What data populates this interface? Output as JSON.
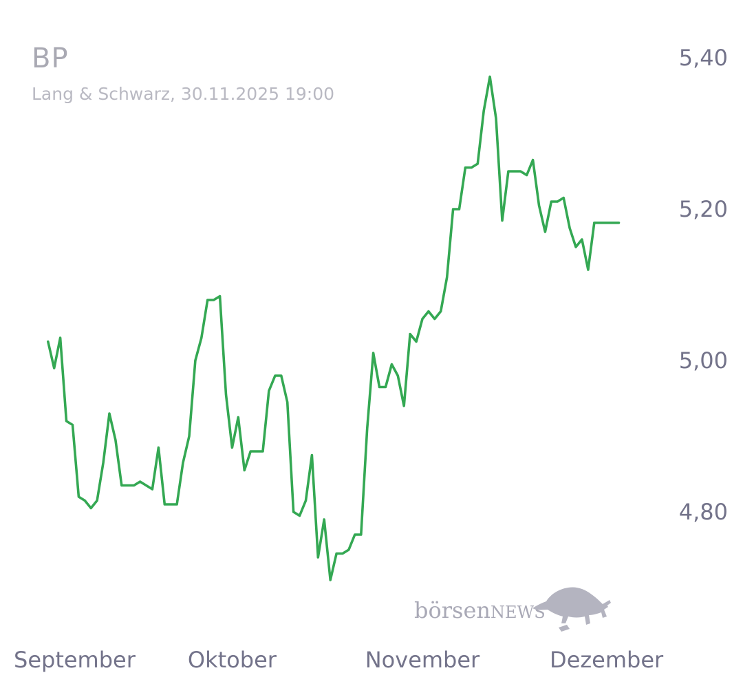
{
  "header": {
    "title": "BP",
    "subtitle": "Lang & Schwarz, 30.11.2025 19:00"
  },
  "watermark": {
    "text_lower": "börsen",
    "text_upper": "NEWS",
    "icon": "bull-icon"
  },
  "colors": {
    "line": "#34a853",
    "title": "#a9a9b3",
    "axis_text": "#73738a",
    "watermark": "#b4b4c0"
  },
  "chart_data": {
    "type": "line",
    "title": "BP",
    "subtitle": "Lang & Schwarz, 30.11.2025 19:00",
    "y_axis_position": "right",
    "ylim": [
      4.66,
      5.43
    ],
    "yticks": [
      4.8,
      5.0,
      5.2,
      5.4
    ],
    "ytick_labels": [
      "4,80",
      "5,00",
      "5,20",
      "5,40"
    ],
    "xlim": [
      "2025-08-29",
      "2025-12-09"
    ],
    "xticks": [
      "2025-09-01",
      "2025-10-01",
      "2025-11-01",
      "2025-12-01"
    ],
    "xtick_labels": [
      "September",
      "Oktober",
      "November",
      "Dezember"
    ],
    "grid": false,
    "legend": "none",
    "series": [
      {
        "x": [
          "2025-09-01",
          "2025-09-02",
          "2025-09-03",
          "2025-09-04",
          "2025-09-05",
          "2025-09-06",
          "2025-09-07",
          "2025-09-08",
          "2025-09-09",
          "2025-09-10",
          "2025-09-11",
          "2025-09-12",
          "2025-09-13",
          "2025-09-14",
          "2025-09-15",
          "2025-09-16",
          "2025-09-17",
          "2025-09-18",
          "2025-09-19",
          "2025-09-20",
          "2025-09-21",
          "2025-09-22",
          "2025-09-23",
          "2025-09-24",
          "2025-09-25",
          "2025-09-26",
          "2025-09-27",
          "2025-09-28",
          "2025-09-29",
          "2025-09-30",
          "2025-10-01",
          "2025-10-02",
          "2025-10-03",
          "2025-10-04",
          "2025-10-05",
          "2025-10-06",
          "2025-10-07",
          "2025-10-08",
          "2025-10-09",
          "2025-10-10",
          "2025-10-11",
          "2025-10-12",
          "2025-10-13",
          "2025-10-14",
          "2025-10-15",
          "2025-10-16",
          "2025-10-17",
          "2025-10-18",
          "2025-10-19",
          "2025-10-20",
          "2025-10-21",
          "2025-10-22",
          "2025-10-23",
          "2025-10-24",
          "2025-10-25",
          "2025-10-26",
          "2025-10-27",
          "2025-10-28",
          "2025-10-29",
          "2025-10-30",
          "2025-10-31",
          "2025-11-01",
          "2025-11-02",
          "2025-11-03",
          "2025-11-04",
          "2025-11-05",
          "2025-11-06",
          "2025-11-07",
          "2025-11-08",
          "2025-11-09",
          "2025-11-10",
          "2025-11-11",
          "2025-11-12",
          "2025-11-13",
          "2025-11-14",
          "2025-11-15",
          "2025-11-16",
          "2025-11-17",
          "2025-11-18",
          "2025-11-19",
          "2025-11-20",
          "2025-11-21",
          "2025-11-22",
          "2025-11-23",
          "2025-11-24",
          "2025-11-25",
          "2025-11-26",
          "2025-11-27",
          "2025-11-28",
          "2025-11-29",
          "2025-11-30",
          "2025-12-01",
          "2025-12-02",
          "2025-12-03"
        ],
        "y": [
          5.025,
          4.99,
          5.03,
          4.92,
          4.915,
          4.82,
          4.815,
          4.805,
          4.815,
          4.865,
          4.93,
          4.895,
          4.835,
          4.835,
          4.835,
          4.84,
          4.835,
          4.83,
          4.885,
          4.81,
          4.81,
          4.81,
          4.865,
          4.9,
          5.0,
          5.03,
          5.08,
          5.08,
          5.085,
          4.955,
          4.885,
          4.925,
          4.855,
          4.88,
          4.88,
          4.88,
          4.96,
          4.98,
          4.98,
          4.945,
          4.8,
          4.795,
          4.815,
          4.875,
          4.74,
          4.79,
          4.71,
          4.745,
          4.745,
          4.75,
          4.77,
          4.77,
          4.91,
          5.01,
          4.965,
          4.965,
          4.995,
          4.98,
          4.94,
          5.035,
          5.025,
          5.055,
          5.065,
          5.055,
          5.065,
          5.11,
          5.2,
          5.2,
          5.255,
          5.255,
          5.26,
          5.33,
          5.375,
          5.32,
          5.185,
          5.25,
          5.25,
          5.25,
          5.245,
          5.265,
          5.205,
          5.17,
          5.21,
          5.21,
          5.215,
          5.175,
          5.15,
          5.16,
          5.12,
          5.182,
          5.182,
          5.182,
          5.182,
          5.182
        ]
      }
    ]
  }
}
